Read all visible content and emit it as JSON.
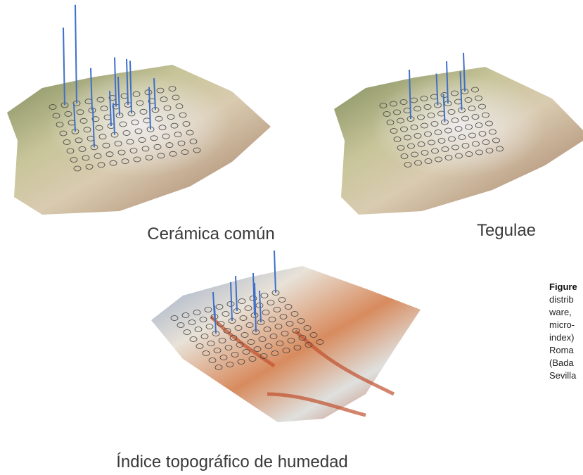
{
  "panels": [
    {
      "label": "Cerámica común"
    },
    {
      "label": "Tegulae"
    },
    {
      "label": "Índice topográfico de humedad"
    }
  ],
  "caption": {
    "title": "Figure",
    "lines": [
      "distrib",
      "ware,",
      "micro-",
      "index)",
      "Roma",
      "(Bada",
      "Sevilla"
    ]
  }
}
